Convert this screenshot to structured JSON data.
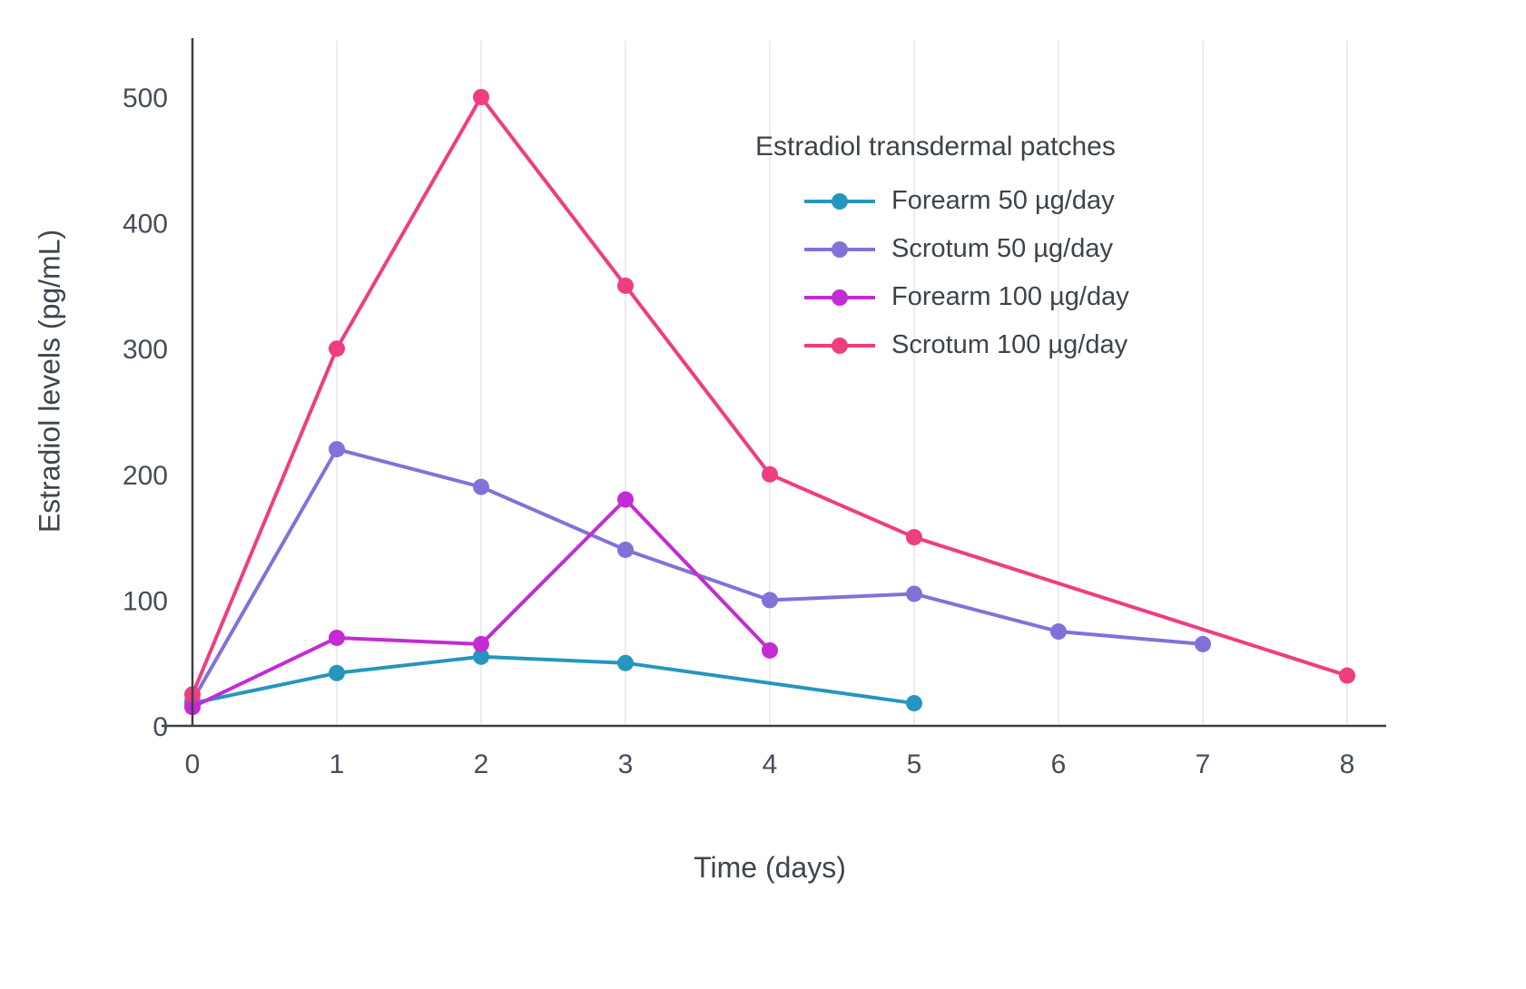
{
  "chart_data": {
    "type": "line",
    "legend_title": "Estradiol transdermal patches",
    "xlabel": "Time (days)",
    "ylabel": "Estradiol levels (pg/mL)",
    "xlim": [
      0,
      8
    ],
    "ylim": [
      0,
      540
    ],
    "x_ticks": [
      0,
      1,
      2,
      3,
      4,
      5,
      6,
      7,
      8
    ],
    "y_ticks": [
      0,
      100,
      200,
      300,
      400,
      500
    ],
    "grid": "vertical-faint",
    "legend_position": "top-right-inside",
    "series": [
      {
        "name": "Forearm 50 µg/day",
        "color": "#2596be",
        "x": [
          0,
          1,
          2,
          3,
          5
        ],
        "y": [
          18,
          42,
          55,
          50,
          18
        ]
      },
      {
        "name": "Scrotum 50 µg/day",
        "color": "#8172d8",
        "x": [
          0,
          1,
          2,
          3,
          4,
          5,
          6,
          7
        ],
        "y": [
          20,
          220,
          190,
          140,
          100,
          105,
          75,
          65
        ]
      },
      {
        "name": "Forearm 100 µg/day",
        "color": "#c32bd4",
        "x": [
          0,
          1,
          2,
          3,
          4
        ],
        "y": [
          15,
          70,
          65,
          180,
          60
        ]
      },
      {
        "name": "Scrotum 100 µg/day",
        "color": "#ee3d80",
        "x": [
          0,
          1,
          2,
          3,
          4,
          5,
          8
        ],
        "y": [
          25,
          300,
          500,
          350,
          200,
          150,
          40
        ]
      }
    ]
  }
}
